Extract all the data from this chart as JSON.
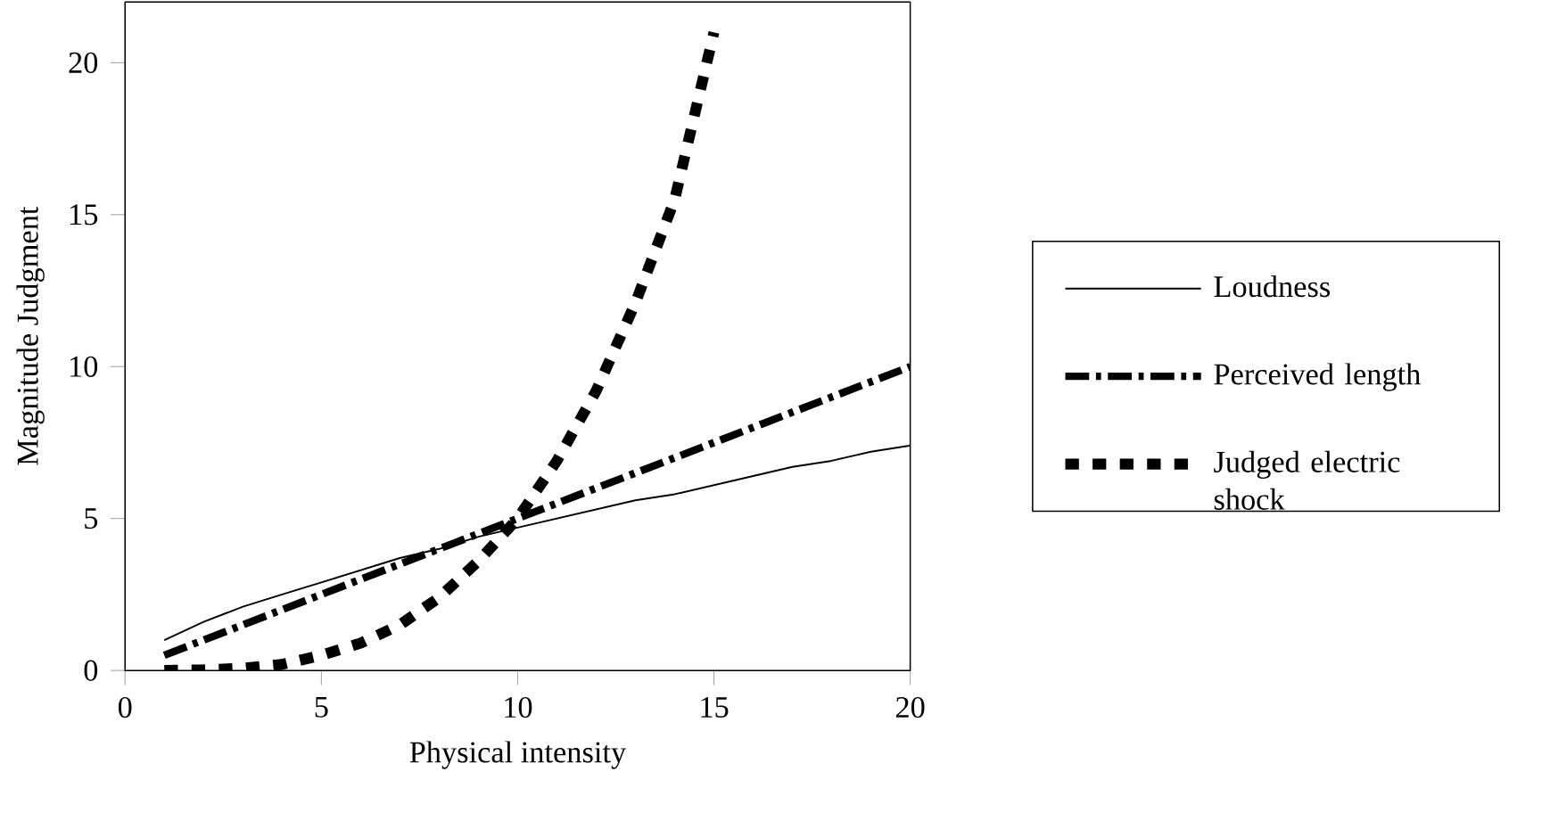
{
  "chart_data": {
    "type": "line",
    "xlabel": "Physical intensity",
    "ylabel": "Magnitude Judgment",
    "x": [
      1,
      2,
      3,
      4,
      5,
      6,
      7,
      8,
      9,
      10,
      11,
      12,
      13,
      14,
      15,
      16,
      17,
      18,
      19,
      20
    ],
    "xlim": [
      0,
      20
    ],
    "ylim": [
      0,
      22
    ],
    "xticks": [
      0,
      5,
      10,
      15,
      20
    ],
    "yticks": [
      0,
      5,
      10,
      15,
      20
    ],
    "legend": "right",
    "grid": false,
    "marker": "none",
    "series": [
      {
        "name": "Loudness",
        "color": "#000000",
        "line_style": "solid",
        "values": [
          1.0,
          1.6,
          2.1,
          2.5,
          2.9,
          3.3,
          3.7,
          4.0,
          4.4,
          4.7,
          5.0,
          5.3,
          5.6,
          5.8,
          6.1,
          6.4,
          6.7,
          6.9,
          7.2,
          7.4
        ]
      },
      {
        "name": "Perceived length",
        "color": "#000000",
        "line_style": "dashdot",
        "values": [
          0.5,
          1.0,
          1.5,
          2.0,
          2.5,
          3.0,
          3.5,
          4.0,
          4.5,
          5.0,
          5.5,
          6.0,
          6.5,
          7.0,
          7.5,
          8.0,
          8.5,
          9.0,
          9.5,
          10.0
        ]
      },
      {
        "name": "Judged electric shock",
        "color": "#000000",
        "line_style": "dashed",
        "x": [
          1,
          2,
          3,
          4,
          5,
          6,
          7,
          8,
          9,
          10,
          11,
          12,
          13,
          14,
          15
        ],
        "values": [
          0.0,
          0.02,
          0.07,
          0.2,
          0.5,
          0.9,
          1.5,
          2.4,
          3.6,
          5.0,
          6.9,
          9.2,
          12.1,
          15.5,
          21.0
        ]
      }
    ]
  }
}
